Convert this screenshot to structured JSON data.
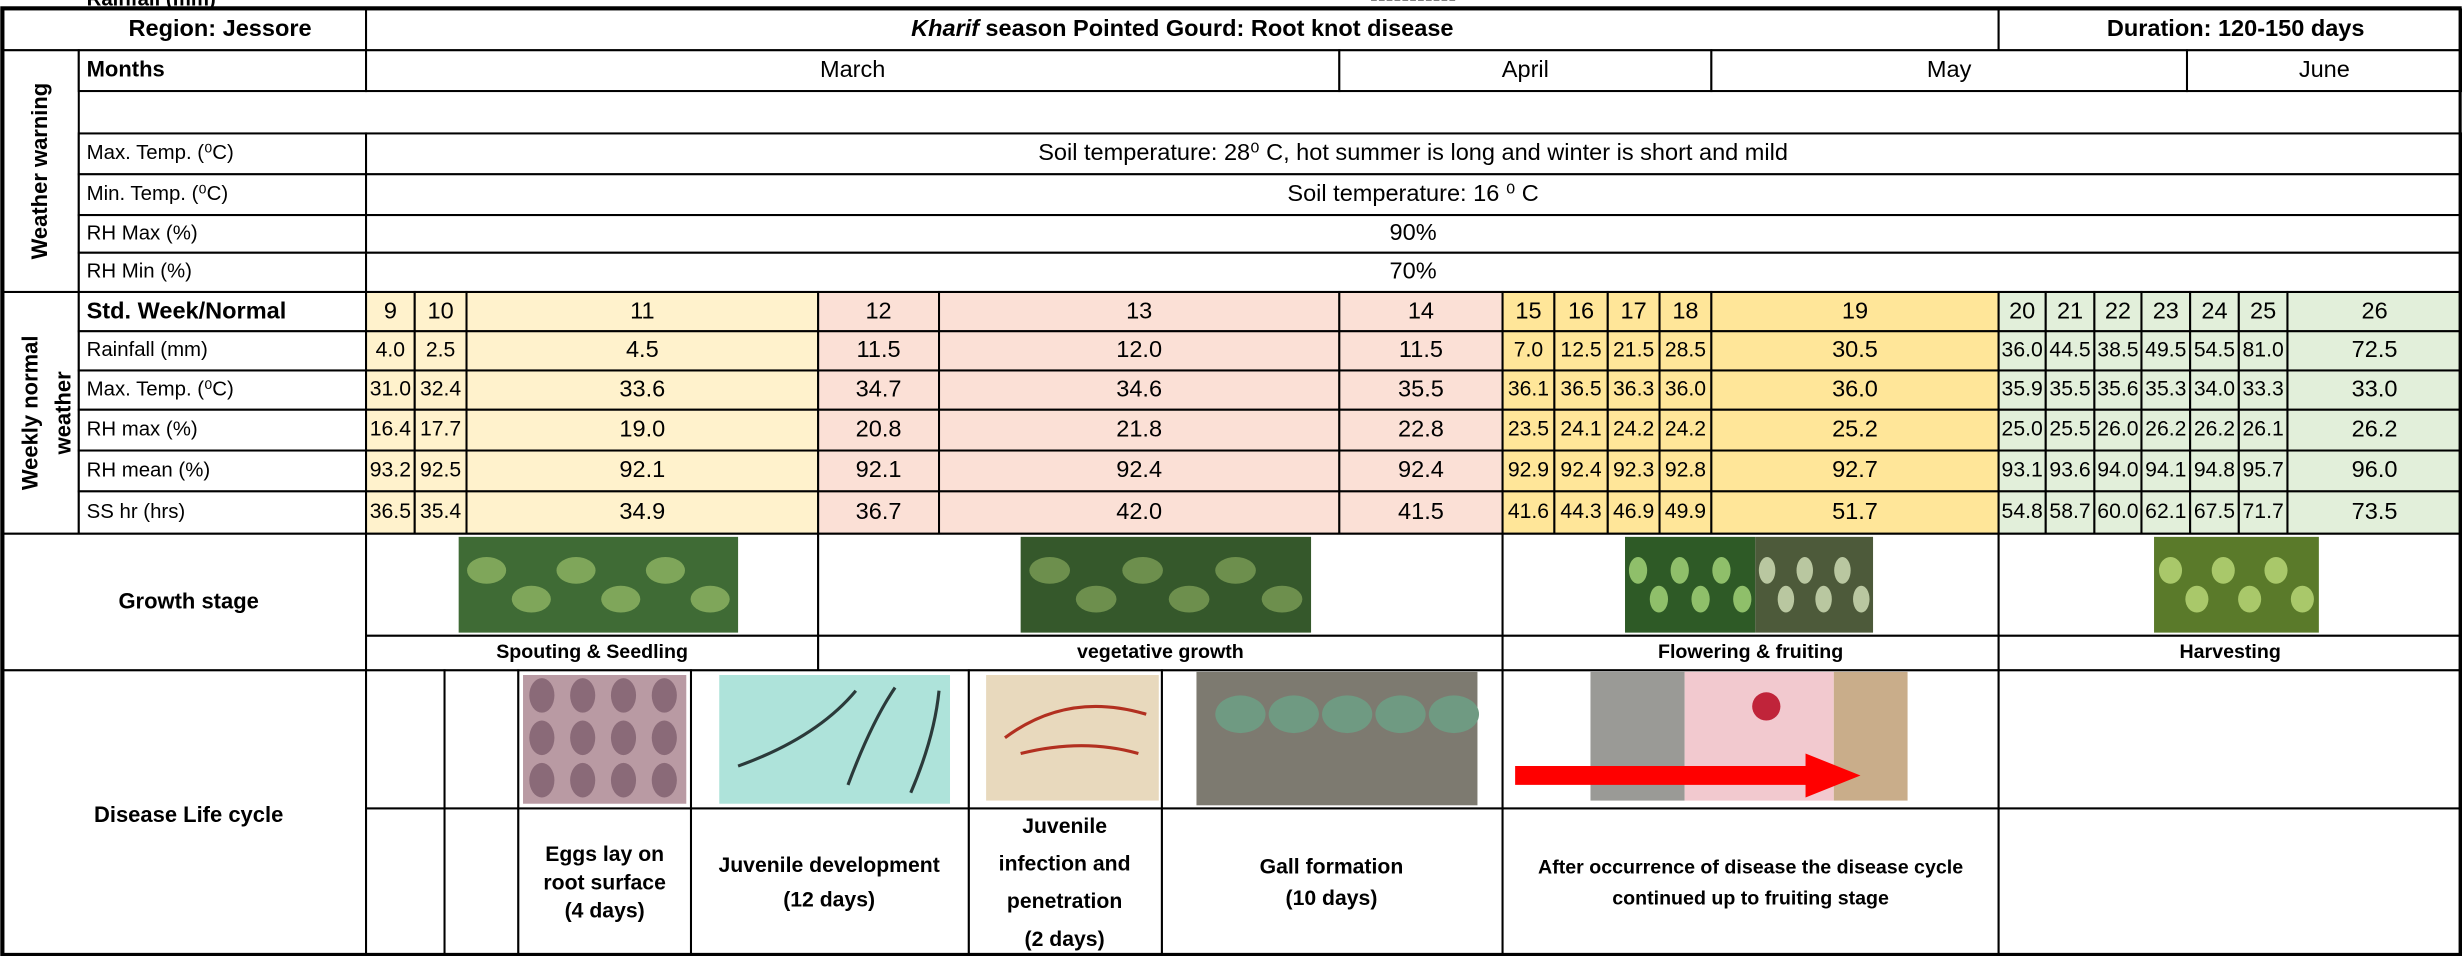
{
  "header": {
    "region": "Region: Jessore",
    "title_italic": "Kharif",
    "title": "season Pointed Gourd: Root knot disease",
    "duration": "Duration: 120-150 days"
  },
  "weather_warning": {
    "label": "Weather warning",
    "months_label": "Months",
    "months": [
      "March",
      "April",
      "May",
      "June"
    ],
    "rows": [
      {
        "label": "Max. Temp. (⁰C)",
        "text": "Soil temperature: 28⁰ C, hot summer is long and winter is short and mild"
      },
      {
        "label": "Min. Temp. (⁰C)",
        "text": "Soil temperature: 16 ⁰ C"
      },
      {
        "label": "RH Max (%)",
        "text": "90%"
      },
      {
        "label": "RH Min (%)",
        "text": "70%"
      },
      {
        "label": "Rainfall (mm)",
        "text": "-----------"
      }
    ]
  },
  "weekly": {
    "label": [
      "Weekly normal",
      "weather"
    ],
    "week_label": "Std. Week/Normal",
    "weeks": [
      "9",
      "10",
      "11",
      "12",
      "13",
      "14",
      "15",
      "16",
      "17",
      "18",
      "19",
      "20",
      "21",
      "22",
      "23",
      "24",
      "25",
      "26"
    ],
    "rows": [
      {
        "label": "Rainfall (mm)",
        "values": [
          "4.0",
          "2.5",
          "4.5",
          "11.5",
          "12.0",
          "11.5",
          "7.0",
          "12.5",
          "21.5",
          "28.5",
          "30.5",
          "36.0",
          "44.5",
          "38.5",
          "49.5",
          "54.5",
          "81.0",
          "72.5"
        ]
      },
      {
        "label": "Max. Temp. (⁰C)",
        "values": [
          "31.0",
          "32.4",
          "33.6",
          "34.7",
          "34.6",
          "35.5",
          "36.1",
          "36.5",
          "36.3",
          "36.0",
          "36.0",
          "35.9",
          "35.5",
          "35.6",
          "35.3",
          "34.0",
          "33.3",
          "33.0"
        ]
      },
      {
        "label": "RH max (%)",
        "values": [
          "16.4",
          "17.7",
          "19.0",
          "20.8",
          "21.8",
          "22.8",
          "23.5",
          "24.1",
          "24.2",
          "24.2",
          "25.2",
          "25.0",
          "25.5",
          "26.0",
          "26.2",
          "26.2",
          "26.1",
          "26.2"
        ]
      },
      {
        "label": "RH mean (%)",
        "values": [
          "93.2",
          "92.5",
          "92.1",
          "92.1",
          "92.4",
          "92.4",
          "92.9",
          "92.4",
          "92.3",
          "92.8",
          "92.7",
          "93.1",
          "93.6",
          "94.0",
          "94.1",
          "94.8",
          "95.7",
          "96.0"
        ]
      },
      {
        "label": "SS hr (hrs)",
        "values": [
          "36.5",
          "35.4",
          "34.9",
          "36.7",
          "42.0",
          "41.5",
          "41.6",
          "44.3",
          "46.9",
          "49.9",
          "51.7",
          "54.8",
          "58.7",
          "60.0",
          "62.1",
          "67.5",
          "71.7",
          "73.5"
        ]
      }
    ]
  },
  "growth": {
    "label": "Growth stage",
    "stages": [
      "Spouting & Seedling",
      "vegetative growth",
      "Flowering & fruiting",
      "Harvesting"
    ]
  },
  "disease": {
    "label": "Disease Life cycle",
    "stages": [
      [
        "Eggs lay on",
        "root surface",
        "(4 days)"
      ],
      [
        "Juvenile development",
        "(12 days)"
      ],
      [
        "Juvenile",
        "infection and",
        "penetration",
        "(2 days)"
      ],
      [
        "Gall formation",
        "(10 days)"
      ],
      [
        "After occurrence  of disease the disease cycle",
        "continued up to fruiting stage"
      ]
    ]
  }
}
